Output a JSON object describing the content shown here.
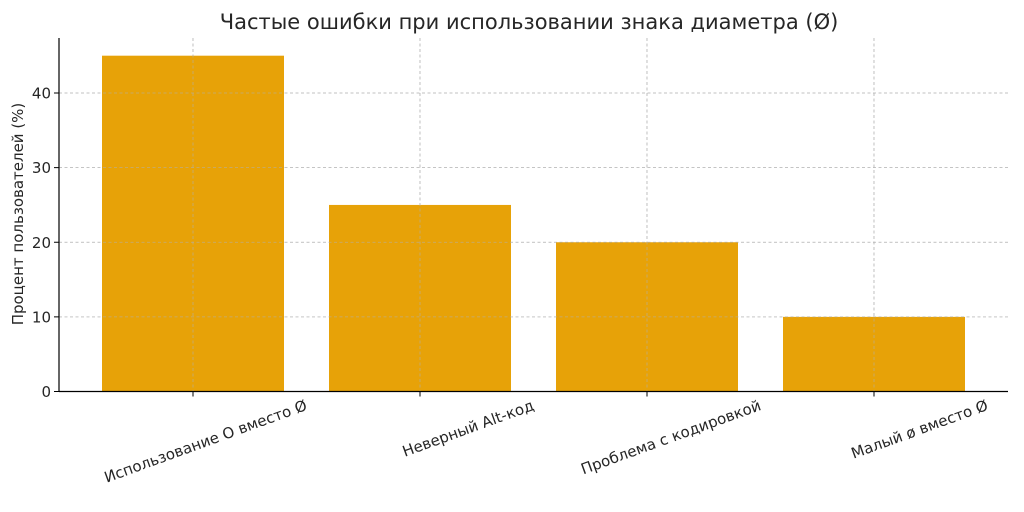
{
  "chart_data": {
    "type": "bar",
    "title": "Частые ошибки при использовании знака диаметра (Ø)",
    "xlabel": "",
    "ylabel": "Процент пользователей (%)",
    "categories": [
      "Использование O вместо Ø",
      "Неверный Alt-код",
      "Проблема с кодировкой",
      "Малый ø вместо Ø"
    ],
    "values": [
      45,
      25,
      20,
      10
    ],
    "ylim": [
      0,
      47.25
    ],
    "yticks": [
      0,
      10,
      20,
      30,
      40
    ],
    "grid": true,
    "grid_style": "dashed",
    "bar_color": "#E69F00",
    "legend": null,
    "xtick_rotation": 20
  }
}
